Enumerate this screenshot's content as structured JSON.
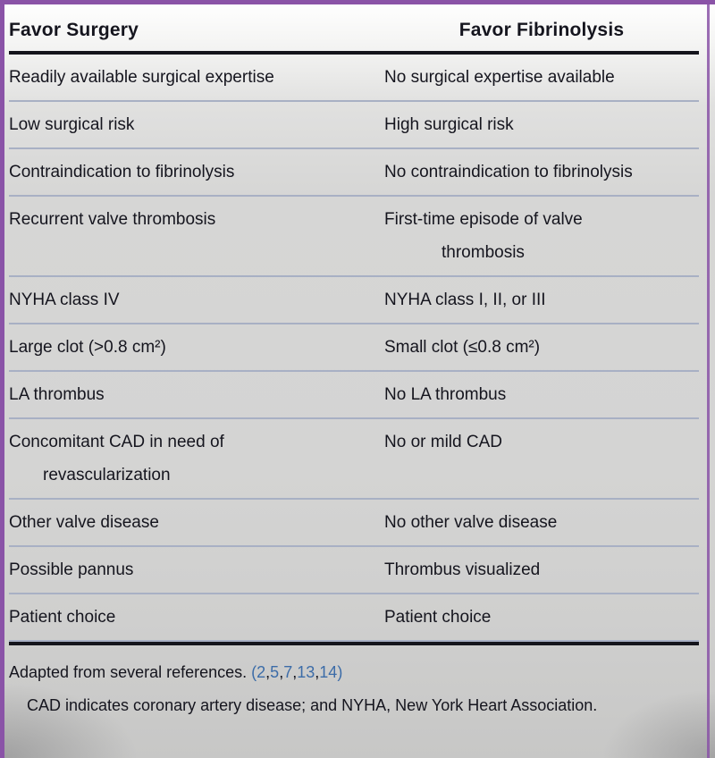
{
  "table": {
    "headers": {
      "left": "Favor Surgery",
      "right": "Favor Fibrinolysis"
    },
    "rows": [
      {
        "left": "Readily available surgical expertise",
        "right": "No surgical expertise available"
      },
      {
        "left": "Low surgical risk",
        "right": "High surgical risk"
      },
      {
        "left": "Contraindication to fibrinolysis",
        "right": "No contraindication to fibrinolysis"
      },
      {
        "left": "Recurrent valve thrombosis",
        "right": "First-time episode of valve\nthrombosis"
      },
      {
        "left": "NYHA class IV",
        "right": "NYHA class I, II, or III"
      },
      {
        "left": "Large clot (>0.8 cm²)",
        "right": "Small clot (≤0.8 cm²)"
      },
      {
        "left": "LA thrombus",
        "right": "No LA thrombus"
      },
      {
        "left": "Concomitant CAD in need of\nrevascularization",
        "right": "No or mild CAD"
      },
      {
        "left": "Other valve disease",
        "right": "No other valve disease"
      },
      {
        "left": "Possible pannus",
        "right": "Thrombus visualized"
      },
      {
        "left": "Patient choice",
        "right": "Patient choice"
      }
    ]
  },
  "footnotes": {
    "adapted_prefix": "Adapted from several references. ",
    "reference_numbers": [
      "2",
      "5",
      "7",
      "13",
      "14"
    ],
    "abbreviations": "CAD indicates coronary artery disease; and NYHA, New York Heart Association."
  },
  "colors": {
    "frame_purple": "#8a53a7",
    "reference_link_blue": "#3c6ca8",
    "row_divider_gray_blue": "#a8b0c4",
    "heavy_rule_black": "#15151c",
    "text_dark": "#15151e",
    "page_background_gray": "#d4d4d3"
  }
}
